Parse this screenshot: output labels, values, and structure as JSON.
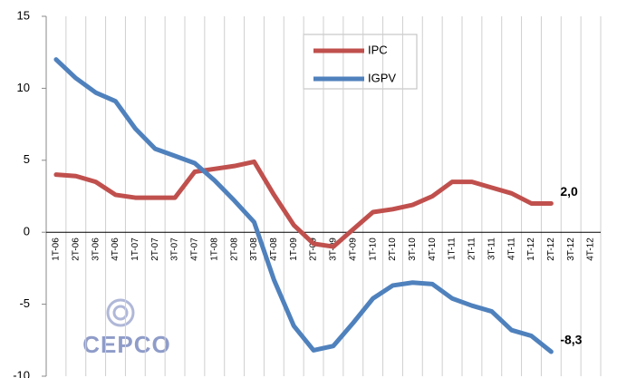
{
  "chart_data": {
    "type": "line",
    "categories": [
      "1T-06",
      "2T-06",
      "3T-06",
      "4T-06",
      "1T-07",
      "2T-07",
      "3T-07",
      "4T-07",
      "1T-08",
      "2T-08",
      "3T-08",
      "4T-08",
      "1T-09",
      "2T-09",
      "3T-09",
      "4T-09",
      "1T-10",
      "2T-10",
      "3T-10",
      "4T-10",
      "1T-11",
      "2T-11",
      "3T-11",
      "4T-11",
      "1T-12",
      "2T-12",
      "3T-12",
      "4T-12"
    ],
    "series": [
      {
        "name": "IPC",
        "color": "#c0504d",
        "values": [
          4.0,
          3.9,
          3.5,
          2.6,
          2.4,
          2.4,
          2.4,
          4.2,
          4.4,
          4.6,
          4.9,
          2.6,
          0.5,
          -0.8,
          -1.0,
          0.2,
          1.4,
          1.6,
          1.9,
          2.5,
          3.5,
          3.5,
          3.1,
          2.7,
          2.0,
          2.0,
          null,
          null
        ],
        "value_labels": [
          null,
          null,
          null,
          null,
          null,
          null,
          null,
          null,
          null,
          null,
          null,
          null,
          null,
          null,
          null,
          null,
          null,
          null,
          null,
          null,
          null,
          null,
          null,
          null,
          null,
          "2,0",
          null,
          null
        ]
      },
      {
        "name": "IGPV",
        "color": "#4f81bd",
        "values": [
          12.0,
          10.7,
          9.7,
          9.1,
          7.2,
          5.8,
          5.3,
          4.8,
          3.6,
          2.2,
          0.7,
          -3.3,
          -6.5,
          -8.2,
          -7.9,
          -6.3,
          -4.6,
          -3.7,
          -3.5,
          -3.6,
          -4.6,
          -5.1,
          -5.5,
          -6.8,
          -7.2,
          -8.3,
          null,
          null
        ],
        "value_labels": [
          null,
          null,
          null,
          null,
          null,
          null,
          null,
          null,
          null,
          null,
          null,
          null,
          null,
          null,
          null,
          null,
          null,
          null,
          null,
          null,
          null,
          null,
          null,
          null,
          null,
          "-8,3",
          null,
          null
        ]
      }
    ],
    "ylim": [
      -10,
      15
    ],
    "yticks": [
      -10,
      -5,
      0,
      5,
      10,
      15
    ],
    "grid": true,
    "logo": "CEPCO"
  }
}
